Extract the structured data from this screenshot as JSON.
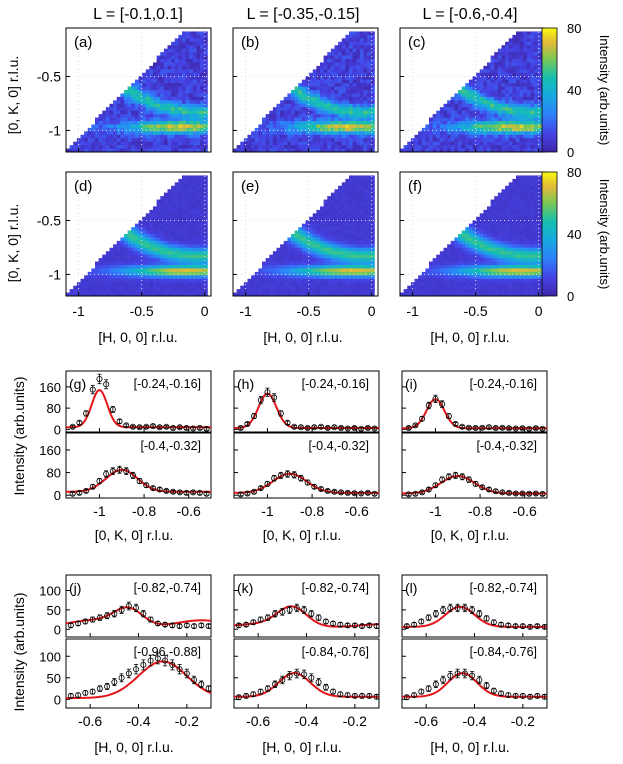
{
  "column_titles": [
    "L = [-0.1,0.1]",
    "L = [-0.35,-0.15]",
    "L = [-0.6,-0.4]"
  ],
  "colorbar": {
    "label": "Intensity (arb.units)",
    "ticks": [
      "80",
      "40",
      "0"
    ],
    "colormap": "parula"
  },
  "maps": {
    "ylabel": "[0, K, 0] r.l.u.",
    "xlabel": "[H, 0, 0] r.l.u.",
    "yticks": [
      "-0.5",
      "-1"
    ],
    "xticks": [
      "-1",
      "-0.5",
      "0"
    ],
    "panel_labels": [
      "(a)",
      "(b)",
      "(c)",
      "(d)",
      "(e)",
      "(f)"
    ]
  },
  "kcuts": {
    "ylabel": "Intensity (arb.units)",
    "xlabel": "[0, K, 0] r.l.u.",
    "yticks": [
      "160",
      "80",
      "0"
    ],
    "xticks": [
      "-1",
      "-0.8",
      "-0.6"
    ],
    "panel_labels": [
      "(g)",
      "(h)",
      "(i)"
    ],
    "range_top": [
      "[-0.24,-0.16]",
      "[-0.24,-0.16]",
      "[-0.24,-0.16]"
    ],
    "range_bottom": [
      "[-0.4,-0.32]",
      "[-0.4,-0.32]",
      "[-0.4,-0.32]"
    ]
  },
  "hcuts": {
    "ylabel": "Intensity (arb.units)",
    "xlabel": "[H, 0, 0] r.l.u.",
    "yticks": [
      "100",
      "50",
      "0"
    ],
    "xticks": [
      "-0.6",
      "-0.4",
      "-0.2"
    ],
    "panel_labels": [
      "(j)",
      "(k)",
      "(l)"
    ],
    "range_top": [
      "[-0.82,-0.74]",
      "[-0.82,-0.74]",
      "[-0.82,-0.74]"
    ],
    "range_bottom": [
      "[-0.96,-0.88]",
      "[-0.84,-0.76]",
      "[-0.84,-0.76]"
    ]
  },
  "colors": {
    "fit": "#e4161b",
    "data": "#000000",
    "cmap_low": "#3e26a8",
    "cmap_high": "#f9fb0e"
  },
  "chart_data": [
    {
      "type": "heatmap",
      "panel": "(a)",
      "xlim": [
        -1.1,
        0.05
      ],
      "ylim": [
        -1.2,
        -0.05
      ]
    },
    {
      "type": "heatmap",
      "panel": "(b)",
      "xlim": [
        -1.1,
        0.05
      ],
      "ylim": [
        -1.2,
        -0.05
      ]
    },
    {
      "type": "heatmap",
      "panel": "(c)",
      "xlim": [
        -1.1,
        0.05
      ],
      "ylim": [
        -1.2,
        -0.05
      ]
    },
    {
      "type": "heatmap",
      "panel": "(d)",
      "xlim": [
        -1.1,
        0.05
      ],
      "ylim": [
        -1.2,
        -0.05
      ]
    },
    {
      "type": "heatmap",
      "panel": "(e)",
      "xlim": [
        -1.1,
        0.05
      ],
      "ylim": [
        -1.2,
        -0.05
      ]
    },
    {
      "type": "heatmap",
      "panel": "(f)",
      "xlim": [
        -1.1,
        0.05
      ],
      "ylim": [
        -1.2,
        -0.05
      ]
    },
    {
      "type": "scatter",
      "panel": "(g) top",
      "xlim": [
        -1.15,
        -0.5
      ],
      "ylim": [
        -10,
        220
      ],
      "x": [
        -1.12,
        -1.09,
        -1.06,
        -1.03,
        -1.0,
        -0.97,
        -0.94,
        -0.91,
        -0.88,
        -0.85,
        -0.82,
        -0.79,
        -0.76,
        -0.73,
        -0.7,
        -0.67,
        -0.64,
        -0.61,
        -0.58,
        -0.55,
        -0.52
      ],
      "y": [
        10,
        25,
        60,
        150,
        190,
        170,
        75,
        30,
        15,
        10,
        8,
        10,
        12,
        8,
        10,
        5,
        8,
        5,
        3,
        5,
        2
      ]
    },
    {
      "type": "scatter",
      "panel": "(g) bottom",
      "xlim": [
        -1.15,
        -0.5
      ],
      "ylim": [
        -10,
        220
      ],
      "x": [
        -1.12,
        -1.09,
        -1.06,
        -1.03,
        -1.0,
        -0.97,
        -0.94,
        -0.91,
        -0.88,
        -0.85,
        -0.82,
        -0.79,
        -0.76,
        -0.73,
        -0.7,
        -0.67,
        -0.64,
        -0.61,
        -0.58,
        -0.55,
        -0.52
      ],
      "y": [
        5,
        8,
        15,
        30,
        50,
        75,
        85,
        90,
        85,
        70,
        50,
        35,
        25,
        20,
        15,
        12,
        10,
        8,
        10,
        8,
        5
      ]
    },
    {
      "type": "scatter",
      "panel": "(h) top",
      "xlim": [
        -1.15,
        -0.5
      ],
      "ylim": [
        -10,
        220
      ],
      "x": [
        -1.12,
        -1.09,
        -1.06,
        -1.03,
        -1.0,
        -0.97,
        -0.94,
        -0.91,
        -0.88,
        -0.85,
        -0.82,
        -0.79,
        -0.76,
        -0.73,
        -0.7,
        -0.67,
        -0.64,
        -0.61,
        -0.58,
        -0.55,
        -0.52
      ],
      "y": [
        5,
        20,
        50,
        110,
        140,
        120,
        60,
        25,
        10,
        8,
        5,
        8,
        10,
        5,
        8,
        5,
        3,
        5,
        2,
        5,
        3
      ]
    },
    {
      "type": "scatter",
      "panel": "(h) bottom",
      "xlim": [
        -1.15,
        -0.5
      ],
      "ylim": [
        -10,
        220
      ],
      "x": [
        -1.12,
        -1.09,
        -1.06,
        -1.03,
        -1.0,
        -0.97,
        -0.94,
        -0.91,
        -0.88,
        -0.85,
        -0.82,
        -0.79,
        -0.76,
        -0.73,
        -0.7,
        -0.67,
        -0.64,
        -0.61,
        -0.58,
        -0.55,
        -0.52
      ],
      "y": [
        3,
        6,
        12,
        25,
        40,
        60,
        70,
        75,
        72,
        60,
        45,
        30,
        22,
        15,
        12,
        10,
        8,
        7,
        6,
        8,
        5
      ]
    },
    {
      "type": "scatter",
      "panel": "(i) top",
      "xlim": [
        -1.15,
        -0.5
      ],
      "ylim": [
        -10,
        220
      ],
      "x": [
        -1.12,
        -1.09,
        -1.06,
        -1.03,
        -1.0,
        -0.97,
        -0.94,
        -0.91,
        -0.88,
        -0.85,
        -0.82,
        -0.79,
        -0.76,
        -0.73,
        -0.7,
        -0.67,
        -0.64,
        -0.61,
        -0.58,
        -0.55,
        -0.52
      ],
      "y": [
        5,
        15,
        40,
        90,
        115,
        95,
        50,
        20,
        10,
        6,
        5,
        6,
        8,
        5,
        6,
        4,
        3,
        4,
        2,
        4,
        2
      ]
    },
    {
      "type": "scatter",
      "panel": "(i) bottom",
      "xlim": [
        -1.15,
        -0.5
      ],
      "ylim": [
        -10,
        220
      ],
      "x": [
        -1.12,
        -1.09,
        -1.06,
        -1.03,
        -1.0,
        -0.97,
        -0.94,
        -0.91,
        -0.88,
        -0.85,
        -0.82,
        -0.79,
        -0.76,
        -0.73,
        -0.7,
        -0.67,
        -0.64,
        -0.61,
        -0.58,
        -0.55,
        -0.52
      ],
      "y": [
        3,
        5,
        10,
        20,
        35,
        55,
        65,
        70,
        65,
        55,
        40,
        28,
        20,
        14,
        10,
        8,
        6,
        6,
        5,
        6,
        4
      ]
    },
    {
      "type": "scatter",
      "panel": "(j) top",
      "xlim": [
        -0.7,
        -0.1
      ],
      "ylim": [
        -20,
        140
      ],
      "x": [
        -0.68,
        -0.65,
        -0.62,
        -0.59,
        -0.56,
        -0.53,
        -0.5,
        -0.47,
        -0.44,
        -0.41,
        -0.38,
        -0.35,
        -0.32,
        -0.29,
        -0.26,
        -0.23,
        -0.2,
        -0.17,
        -0.14,
        -0.11
      ],
      "y": [
        10,
        15,
        20,
        25,
        30,
        35,
        40,
        50,
        60,
        55,
        40,
        25,
        15,
        12,
        10,
        8,
        10,
        8,
        10,
        8
      ]
    },
    {
      "type": "scatter",
      "panel": "(j) bottom",
      "xlim": [
        -0.7,
        -0.1
      ],
      "ylim": [
        -20,
        140
      ],
      "x": [
        -0.68,
        -0.65,
        -0.62,
        -0.59,
        -0.56,
        -0.53,
        -0.5,
        -0.47,
        -0.44,
        -0.41,
        -0.38,
        -0.35,
        -0.32,
        -0.29,
        -0.26,
        -0.23,
        -0.2,
        -0.17,
        -0.14,
        -0.11
      ],
      "y": [
        8,
        10,
        15,
        18,
        25,
        30,
        40,
        50,
        60,
        70,
        80,
        90,
        95,
        90,
        80,
        70,
        60,
        45,
        35,
        25
      ]
    },
    {
      "type": "scatter",
      "panel": "(k) top",
      "xlim": [
        -0.7,
        -0.1
      ],
      "ylim": [
        -20,
        140
      ],
      "x": [
        -0.68,
        -0.65,
        -0.62,
        -0.59,
        -0.56,
        -0.53,
        -0.5,
        -0.47,
        -0.44,
        -0.41,
        -0.38,
        -0.35,
        -0.32,
        -0.29,
        -0.26,
        -0.23,
        -0.2,
        -0.17,
        -0.14,
        -0.11
      ],
      "y": [
        10,
        12,
        18,
        25,
        30,
        40,
        45,
        50,
        55,
        50,
        40,
        30,
        20,
        15,
        12,
        10,
        10,
        8,
        10,
        8
      ]
    },
    {
      "type": "scatter",
      "panel": "(k) bottom",
      "xlim": [
        -0.7,
        -0.1
      ],
      "ylim": [
        -20,
        140
      ],
      "x": [
        -0.68,
        -0.65,
        -0.62,
        -0.59,
        -0.56,
        -0.53,
        -0.5,
        -0.47,
        -0.44,
        -0.41,
        -0.38,
        -0.35,
        -0.32,
        -0.29,
        -0.26,
        -0.23,
        -0.2,
        -0.17,
        -0.14,
        -0.11
      ],
      "y": [
        5,
        8,
        12,
        18,
        25,
        35,
        45,
        55,
        60,
        58,
        50,
        40,
        28,
        18,
        12,
        10,
        8,
        8,
        8,
        6
      ]
    },
    {
      "type": "scatter",
      "panel": "(l) top",
      "xlim": [
        -0.7,
        -0.1
      ],
      "ylim": [
        -20,
        140
      ],
      "x": [
        -0.68,
        -0.65,
        -0.62,
        -0.59,
        -0.56,
        -0.53,
        -0.5,
        -0.47,
        -0.44,
        -0.41,
        -0.38,
        -0.35,
        -0.32,
        -0.29,
        -0.26,
        -0.23,
        -0.2,
        -0.17,
        -0.14,
        -0.11
      ],
      "y": [
        8,
        12,
        20,
        30,
        40,
        50,
        55,
        55,
        55,
        50,
        40,
        28,
        18,
        12,
        10,
        8,
        8,
        6,
        8,
        6
      ]
    },
    {
      "type": "scatter",
      "panel": "(l) bottom",
      "xlim": [
        -0.7,
        -0.1
      ],
      "ylim": [
        -20,
        140
      ],
      "x": [
        -0.68,
        -0.65,
        -0.62,
        -0.59,
        -0.56,
        -0.53,
        -0.5,
        -0.47,
        -0.44,
        -0.41,
        -0.38,
        -0.35,
        -0.32,
        -0.29,
        -0.26,
        -0.23,
        -0.2,
        -0.17,
        -0.14,
        -0.11
      ],
      "y": [
        5,
        10,
        18,
        25,
        35,
        45,
        55,
        60,
        60,
        55,
        45,
        32,
        20,
        14,
        10,
        8,
        8,
        6,
        8,
        6
      ]
    }
  ]
}
